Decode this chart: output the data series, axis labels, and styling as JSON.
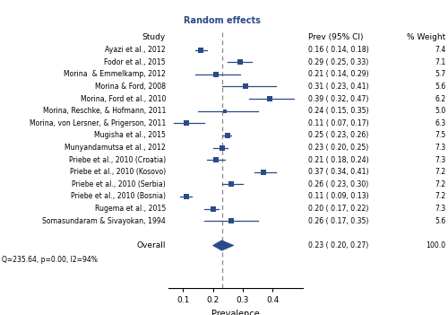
{
  "studies": [
    "Ayazi et al., 2012",
    "Fodor et al., 2015",
    "Morina  & Emmelkamp, 2012",
    "Morina & Ford, 2008",
    "Morina, Ford et al., 2010",
    "Morina, Reschke, & Hofmann, 2011",
    "Morina, von Lersner, & Prigerson, 2011",
    "Mugisha et al., 2015",
    "Munyandamutsa et al., 2012",
    "Priebe et al., 2010 (Croatia)",
    "Priebe et al., 2010 (Kosovo)",
    "Priebe et al., 2010 (Serbia)",
    "Priebe et al., 2010 (Bosnia)",
    "Rugema et al., 2015",
    "Somasundaram & Sivayokan, 1994"
  ],
  "prev": [
    0.16,
    0.29,
    0.21,
    0.31,
    0.39,
    0.24,
    0.11,
    0.25,
    0.23,
    0.21,
    0.37,
    0.26,
    0.11,
    0.2,
    0.26
  ],
  "ci_low": [
    0.14,
    0.25,
    0.14,
    0.23,
    0.32,
    0.15,
    0.07,
    0.23,
    0.2,
    0.18,
    0.34,
    0.23,
    0.09,
    0.17,
    0.17
  ],
  "ci_high": [
    0.18,
    0.33,
    0.29,
    0.41,
    0.47,
    0.35,
    0.17,
    0.26,
    0.25,
    0.24,
    0.41,
    0.3,
    0.13,
    0.22,
    0.35
  ],
  "weights": [
    7.4,
    7.1,
    5.7,
    5.6,
    6.2,
    5.0,
    6.3,
    7.5,
    7.3,
    7.3,
    7.2,
    7.2,
    7.2,
    7.3,
    5.6
  ],
  "ci_text": [
    "0.16 ( 0.14, 0.18)",
    "0.29 ( 0.25, 0.33)",
    "0.21 ( 0.14, 0.29)",
    "0.31 ( 0.23, 0.41)",
    "0.39 ( 0.32, 0.47)",
    "0.24 ( 0.15, 0.35)",
    "0.11 ( 0.07, 0.17)",
    "0.25 ( 0.23, 0.26)",
    "0.23 ( 0.20, 0.25)",
    "0.21 ( 0.18, 0.24)",
    "0.37 ( 0.34, 0.41)",
    "0.26 ( 0.23, 0.30)",
    "0.11 ( 0.09, 0.13)",
    "0.20 ( 0.17, 0.22)",
    "0.26 ( 0.17, 0.35)"
  ],
  "weight_text": [
    "7.4",
    "7.1",
    "5.7",
    "5.6",
    "6.2",
    "5.0",
    "6.3",
    "7.5",
    "7.3",
    "7.3",
    "7.2",
    "7.2",
    "7.2",
    "7.3",
    "5.6"
  ],
  "overall_prev": 0.23,
  "overall_ci_low": 0.2,
  "overall_ci_high": 0.27,
  "overall_ci_text": "0.23 ( 0.20, 0.27)",
  "overall_weight_text": "100.0",
  "dashed_line_x": 0.23,
  "xmin": 0.05,
  "xmax": 0.5,
  "xlabel": "Prevalence",
  "xticks": [
    0.1,
    0.2,
    0.3,
    0.4
  ],
  "header_study": "Study",
  "header_prev": "Prev (95% CI)",
  "header_weight": "% Weight",
  "random_effects_label": "Random effects",
  "overall_label": "Overall",
  "stats_label": "Q=235.64, p=0.00, I2=94%",
  "marker_color": "#2B4A8A",
  "diamond_color": "#2B4A8A",
  "line_color": "#2B4A8A",
  "dashed_color": "#888888",
  "title_color": "#2B4A8A"
}
